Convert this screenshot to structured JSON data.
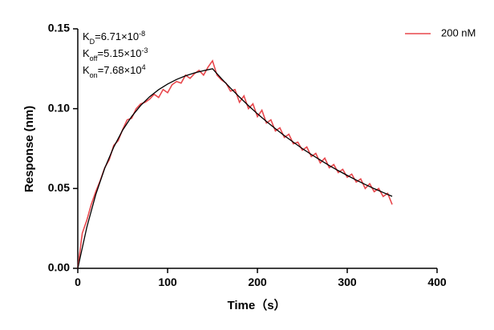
{
  "chart_data": {
    "type": "line",
    "y_label": "Response (nm)",
    "x_label": "Time（s）",
    "xlim": [
      0,
      400
    ],
    "xticks": [
      0,
      100,
      200,
      300,
      400
    ],
    "ylim": [
      0,
      0.15
    ],
    "yticks": [
      {
        "value": 0,
        "label": "0.00"
      },
      0.05,
      {
        "value": 0.1,
        "label": "0.10"
      },
      0.15
    ],
    "legend": "upper right",
    "annotations": [
      {
        "symbol": "K",
        "subscript": "D",
        "text": "=6.71×10",
        "superscript": "-8"
      },
      {
        "symbol": "K",
        "subscript": "off",
        "text": "=5.15×10",
        "superscript": "-3"
      },
      {
        "symbol": "K",
        "subscript": "on",
        "text": "=7.68×10",
        "superscript": "4"
      }
    ],
    "series": [
      {
        "name": "200 nM",
        "color": "#e8474c",
        "x": [
          0,
          5,
          10,
          15,
          20,
          25,
          30,
          35,
          40,
          45,
          50,
          55,
          60,
          65,
          70,
          75,
          80,
          85,
          90,
          95,
          100,
          105,
          110,
          115,
          120,
          125,
          130,
          135,
          140,
          145,
          150,
          155,
          160,
          165,
          170,
          175,
          180,
          185,
          190,
          195,
          200,
          205,
          210,
          215,
          220,
          225,
          230,
          235,
          240,
          245,
          250,
          255,
          260,
          265,
          270,
          275,
          280,
          285,
          290,
          295,
          300,
          305,
          310,
          315,
          320,
          325,
          330,
          335,
          340,
          345,
          350
        ],
        "values": [
          0.0,
          0.022,
          0.03,
          0.04,
          0.048,
          0.055,
          0.063,
          0.068,
          0.077,
          0.08,
          0.087,
          0.093,
          0.094,
          0.1,
          0.103,
          0.104,
          0.106,
          0.109,
          0.107,
          0.112,
          0.11,
          0.115,
          0.117,
          0.116,
          0.121,
          0.119,
          0.122,
          0.124,
          0.121,
          0.126,
          0.13,
          0.121,
          0.118,
          0.116,
          0.111,
          0.112,
          0.104,
          0.108,
          0.1,
          0.103,
          0.095,
          0.099,
          0.091,
          0.093,
          0.086,
          0.088,
          0.082,
          0.084,
          0.078,
          0.079,
          0.074,
          0.076,
          0.07,
          0.072,
          0.066,
          0.069,
          0.063,
          0.065,
          0.06,
          0.062,
          0.057,
          0.059,
          0.054,
          0.056,
          0.05,
          0.053,
          0.048,
          0.05,
          0.045,
          0.047,
          0.04
        ]
      },
      {
        "color": "#000000",
        "x": [
          0,
          10,
          20,
          30,
          40,
          50,
          60,
          70,
          80,
          90,
          100,
          110,
          120,
          130,
          140,
          150,
          160,
          170,
          180,
          190,
          200,
          210,
          220,
          230,
          240,
          250,
          260,
          270,
          280,
          290,
          300,
          310,
          320,
          330,
          340,
          350
        ],
        "values": [
          0,
          0.0256,
          0.0462,
          0.0627,
          0.0759,
          0.0866,
          0.0951,
          0.102,
          0.1075,
          0.1119,
          0.1154,
          0.1183,
          0.1206,
          0.1224,
          0.1238,
          0.125,
          0.1188,
          0.1129,
          0.1073,
          0.1019,
          0.0968,
          0.092,
          0.0875,
          0.0831,
          0.079,
          0.075,
          0.0713,
          0.0678,
          0.0644,
          0.0612,
          0.0582,
          0.0553,
          0.0525,
          0.0499,
          0.0475,
          0.0451
        ]
      }
    ]
  }
}
